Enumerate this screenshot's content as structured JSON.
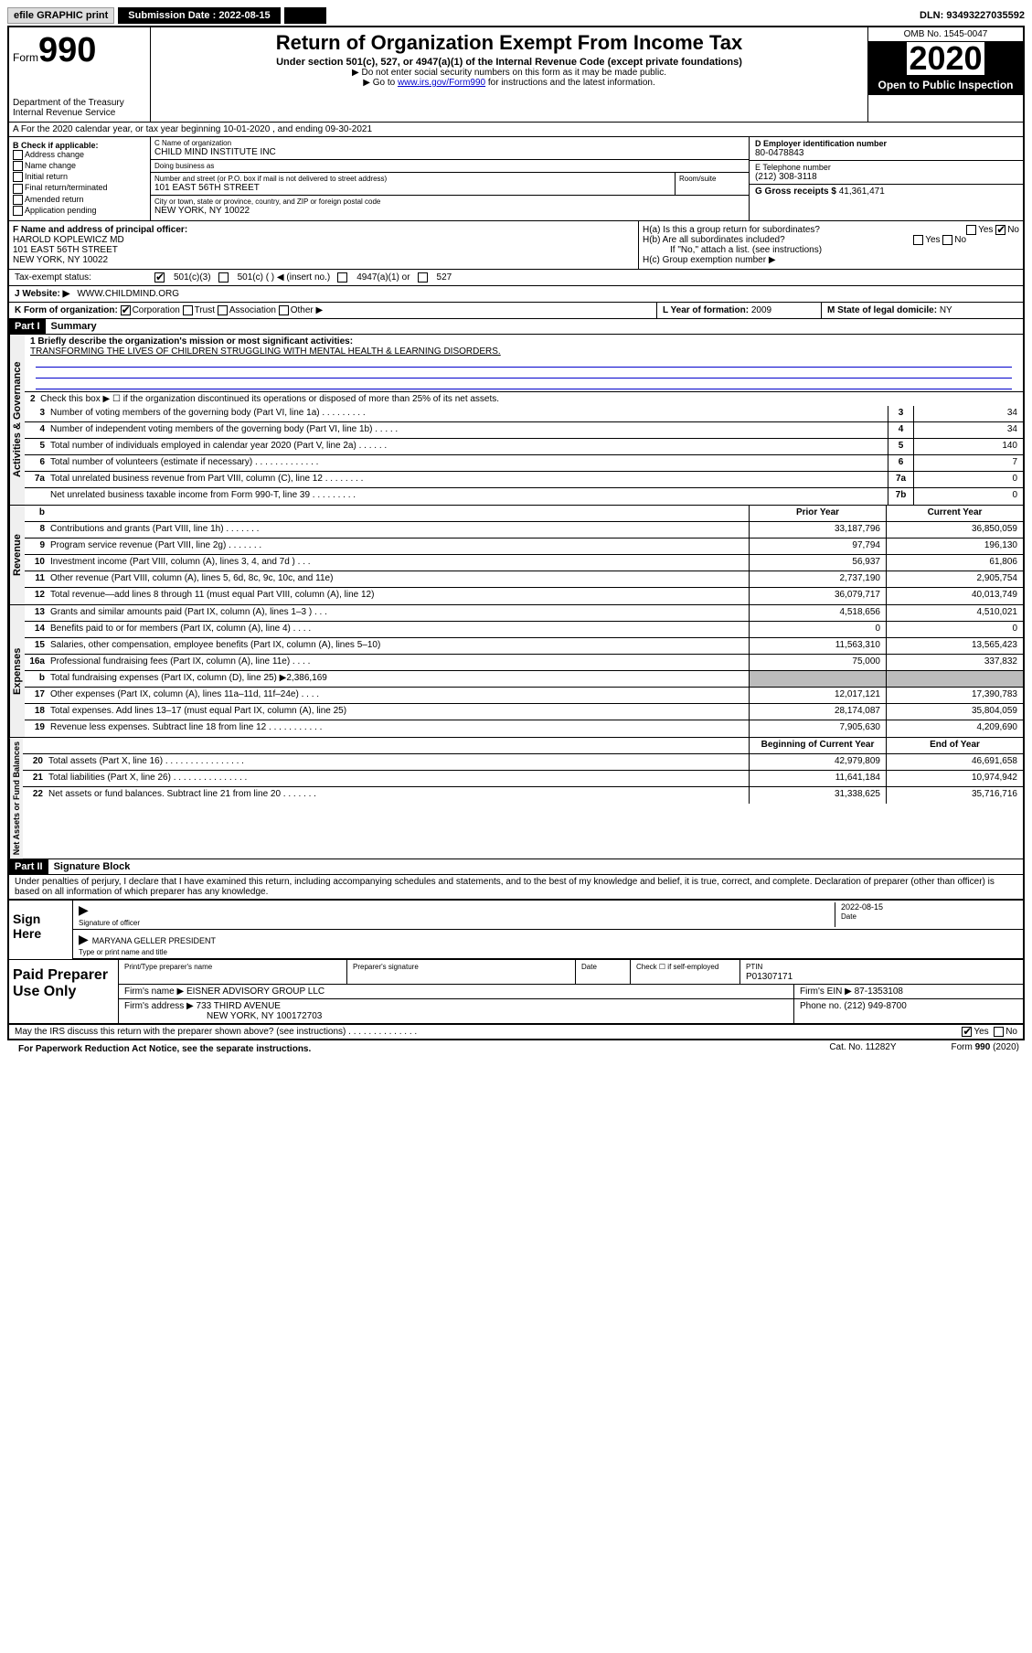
{
  "topbar": {
    "efile": "efile GRAPHIC print",
    "submission_label": "Submission Date : 2022-08-15",
    "dln": "DLN: 93493227035592"
  },
  "header": {
    "form_label": "Form",
    "form_number": "990",
    "dept1": "Department of the Treasury",
    "dept2": "Internal Revenue Service",
    "title": "Return of Organization Exempt From Income Tax",
    "subtitle": "Under section 501(c), 527, or 4947(a)(1) of the Internal Revenue Code (except private foundations)",
    "note1": "▶ Do not enter social security numbers on this form as it may be made public.",
    "note2_pre": "▶ Go to ",
    "note2_link": "www.irs.gov/Form990",
    "note2_post": " for instructions and the latest information.",
    "omb": "OMB No. 1545-0047",
    "year": "2020",
    "open_public": "Open to Public Inspection"
  },
  "rowA": "A For the 2020 calendar year, or tax year beginning 10-01-2020    , and ending 09-30-2021",
  "blockB": {
    "title": "B Check if applicable:",
    "opts": [
      "Address change",
      "Name change",
      "Initial return",
      "Final return/terminated",
      "Amended return",
      "Application pending"
    ]
  },
  "blockC": {
    "name_label": "C Name of organization",
    "name": "CHILD MIND INSTITUTE INC",
    "dba_label": "Doing business as",
    "dba": "",
    "street_label": "Number and street (or P.O. box if mail is not delivered to street address)",
    "room_label": "Room/suite",
    "street": "101 EAST 56TH STREET",
    "city_label": "City or town, state or province, country, and ZIP or foreign postal code",
    "city": "NEW YORK, NY  10022"
  },
  "blockD": {
    "label": "D Employer identification number",
    "value": "80-0478843"
  },
  "blockE": {
    "label": "E Telephone number",
    "value": "(212) 308-3118"
  },
  "blockG": {
    "label": "G Gross receipts $",
    "value": "41,361,471"
  },
  "blockF": {
    "label": "F  Name and address of principal officer:",
    "name": "HAROLD KOPLEWICZ MD",
    "street": "101 EAST 56TH STREET",
    "city": "NEW YORK, NY  10022"
  },
  "blockH": {
    "a": "H(a)  Is this a group return for subordinates?",
    "b": "H(b)  Are all subordinates included?",
    "b_note": "If \"No,\" attach a list. (see instructions)",
    "c": "H(c)  Group exemption number ▶",
    "yes": "Yes",
    "no": "No"
  },
  "taxExempt": {
    "label": "Tax-exempt status:",
    "opt1": "501(c)(3)",
    "opt2": "501(c) (   ) ◀ (insert no.)",
    "opt3": "4947(a)(1) or",
    "opt4": "527"
  },
  "blockJ": {
    "label": "J   Website: ▶",
    "value": "WWW.CHILDMIND.ORG"
  },
  "blockK": {
    "label": "K Form of organization:",
    "corp": "Corporation",
    "trust": "Trust",
    "assoc": "Association",
    "other": "Other ▶"
  },
  "blockL": {
    "label": "L Year of formation:",
    "value": "2009"
  },
  "blockM": {
    "label": "M State of legal domicile:",
    "value": "NY"
  },
  "partI": {
    "header": "Part I",
    "title": "Summary"
  },
  "mission": {
    "label": "1   Briefly describe the organization's mission or most significant activities:",
    "text": "TRANSFORMING THE LIVES OF CHILDREN STRUGGLING WITH MENTAL HEALTH & LEARNING DISORDERS."
  },
  "governance": {
    "label": "Activities & Governance",
    "l2": "Check this box ▶ ☐  if the organization discontinued its operations or disposed of more than 25% of its net assets.",
    "lines": [
      {
        "n": "3",
        "d": "Number of voting members of the governing body (Part VI, line 1a)   .    .    .    .    .    .    .    .    .",
        "b": "3",
        "v": "34"
      },
      {
        "n": "4",
        "d": "Number of independent voting members of the governing body (Part VI, line 1b)   .    .    .    .    .",
        "b": "4",
        "v": "34"
      },
      {
        "n": "5",
        "d": "Total number of individuals employed in calendar year 2020 (Part V, line 2a)   .    .    .    .    .    .",
        "b": "5",
        "v": "140"
      },
      {
        "n": "6",
        "d": "Total number of volunteers (estimate if necessary)   .    .    .    .    .    .    .    .    .    .    .    .    .",
        "b": "6",
        "v": "7"
      },
      {
        "n": "7a",
        "d": "Total unrelated business revenue from Part VIII, column (C), line 12   .    .    .    .    .    .    .    .",
        "b": "7a",
        "v": "0"
      },
      {
        "n": "",
        "d": "Net unrelated business taxable income from Form 990-T, line 39   .    .    .    .    .    .    .    .    .",
        "b": "7b",
        "v": "0"
      }
    ]
  },
  "colheaders": {
    "prior": "Prior Year",
    "current": "Current Year",
    "boy": "Beginning of Current Year",
    "eoy": "End of Year"
  },
  "revenue": {
    "label": "Revenue",
    "lines": [
      {
        "n": "8",
        "d": "Contributions and grants (Part VIII, line 1h)   .    .    .    .    .    .    .",
        "p": "33,187,796",
        "c": "36,850,059"
      },
      {
        "n": "9",
        "d": "Program service revenue (Part VIII, line 2g)   .    .    .    .    .    .    .",
        "p": "97,794",
        "c": "196,130"
      },
      {
        "n": "10",
        "d": "Investment income (Part VIII, column (A), lines 3, 4, and 7d )   .    .    .",
        "p": "56,937",
        "c": "61,806"
      },
      {
        "n": "11",
        "d": "Other revenue (Part VIII, column (A), lines 5, 6d, 8c, 9c, 10c, and 11e)",
        "p": "2,737,190",
        "c": "2,905,754"
      },
      {
        "n": "12",
        "d": "Total revenue—add lines 8 through 11 (must equal Part VIII, column (A), line 12)",
        "p": "36,079,717",
        "c": "40,013,749"
      }
    ]
  },
  "expenses": {
    "label": "Expenses",
    "lines": [
      {
        "n": "13",
        "d": "Grants and similar amounts paid (Part IX, column (A), lines 1–3 )   .    .    .",
        "p": "4,518,656",
        "c": "4,510,021"
      },
      {
        "n": "14",
        "d": "Benefits paid to or for members (Part IX, column (A), line 4)   .    .    .    .",
        "p": "0",
        "c": "0"
      },
      {
        "n": "15",
        "d": "Salaries, other compensation, employee benefits (Part IX, column (A), lines 5–10)",
        "p": "11,563,310",
        "c": "13,565,423"
      },
      {
        "n": "16a",
        "d": "Professional fundraising fees (Part IX, column (A), line 11e)   .    .    .    .",
        "p": "75,000",
        "c": "337,832"
      },
      {
        "n": "b",
        "d": "Total fundraising expenses (Part IX, column (D), line 25) ▶2,386,169",
        "p": "",
        "c": "",
        "gray": true
      },
      {
        "n": "17",
        "d": "Other expenses (Part IX, column (A), lines 11a–11d, 11f–24e)   .    .    .    .",
        "p": "12,017,121",
        "c": "17,390,783"
      },
      {
        "n": "18",
        "d": "Total expenses. Add lines 13–17 (must equal Part IX, column (A), line 25)",
        "p": "28,174,087",
        "c": "35,804,059"
      },
      {
        "n": "19",
        "d": "Revenue less expenses. Subtract line 18 from line 12   .    .    .    .    .    .    .    .    .    .    .",
        "p": "7,905,630",
        "c": "4,209,690"
      }
    ]
  },
  "netassets": {
    "label": "Net Assets or Fund Balances",
    "lines": [
      {
        "n": "20",
        "d": "Total assets (Part X, line 16)  .    .    .    .    .    .    .    .    .    .    .    .    .    .    .    .",
        "p": "42,979,809",
        "c": "46,691,658"
      },
      {
        "n": "21",
        "d": "Total liabilities (Part X, line 26)   .    .    .    .    .    .    .    .    .    .    .    .    .    .    .",
        "p": "11,641,184",
        "c": "10,974,942"
      },
      {
        "n": "22",
        "d": "Net assets or fund balances. Subtract line 21 from line 20  .    .    .    .    .    .    .",
        "p": "31,338,625",
        "c": "35,716,716"
      }
    ]
  },
  "partII": {
    "header": "Part II",
    "title": "Signature Block"
  },
  "penalties": "Under penalties of perjury, I declare that I have examined this return, including accompanying schedules and statements, and to the best of my knowledge and belief, it is true, correct, and complete. Declaration of preparer (other than officer) is based on all information of which preparer has any knowledge.",
  "sign": {
    "here": "Sign Here",
    "sig_label": "Signature of officer",
    "date_label": "Date",
    "date": "2022-08-15",
    "name": "MARYANA GELLER  PRESIDENT",
    "name_label": "Type or print name and title"
  },
  "preparer": {
    "title": "Paid Preparer Use Only",
    "r1": {
      "c1": "Print/Type preparer's name",
      "c2": "Preparer's signature",
      "c3": "Date",
      "c4": "Check ☐ if self-employed",
      "c5l": "PTIN",
      "c5v": "P01307171"
    },
    "r2": {
      "label": "Firm's name    ▶",
      "value": "EISNER ADVISORY GROUP LLC",
      "ein_label": "Firm's EIN ▶",
      "ein": "87-1353108"
    },
    "r3": {
      "label": "Firm's address ▶",
      "line1": "733 THIRD AVENUE",
      "line2": "NEW YORK, NY  100172703",
      "phone_label": "Phone no.",
      "phone": "(212) 949-8700"
    }
  },
  "discuss": {
    "text": "May the IRS discuss this return with the preparer shown above? (see instructions)  .    .    .    .    .    .    .    .    .    .    .    .    .    .",
    "yes": "Yes",
    "no": "No"
  },
  "footer": {
    "paperwork": "For Paperwork Reduction Act Notice, see the separate instructions.",
    "cat": "Cat. No. 11282Y",
    "form": "Form 990 (2020)"
  }
}
